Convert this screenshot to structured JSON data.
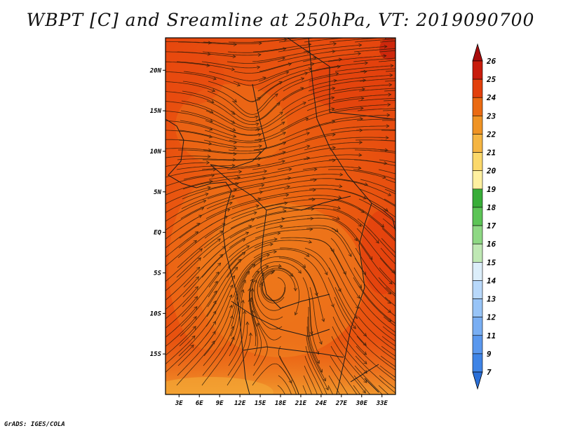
{
  "chart_data": {
    "type": "heatmap",
    "title": "WBPT [C] and Sreamline at 250hPa, VT: 2019090700",
    "x_ticks": [
      "3E",
      "6E",
      "9E",
      "12E",
      "15E",
      "18E",
      "21E",
      "24E",
      "27E",
      "30E",
      "33E"
    ],
    "y_ticks": [
      "20N",
      "15N",
      "10N",
      "5N",
      "EQ",
      "5S",
      "10S",
      "15S"
    ],
    "x_range": [
      "1E",
      "35E"
    ],
    "y_range": [
      "20S",
      "24N"
    ],
    "field_range_c": [
      22,
      24
    ],
    "colorbar": {
      "levels": [
        7,
        9,
        11,
        12,
        13,
        14,
        15,
        16,
        17,
        18,
        19,
        20,
        21,
        22,
        23,
        24,
        25,
        26
      ],
      "colors": [
        "#2a6fd8",
        "#3f84e6",
        "#5a98ee",
        "#79aef3",
        "#98c4f7",
        "#b8d8fa",
        "#dceefa",
        "#bfe8b4",
        "#8ed884",
        "#5cc456",
        "#38ad38",
        "#fff0a0",
        "#fbd86a",
        "#f5b542",
        "#ef9324",
        "#ea6a12",
        "#e2400c",
        "#c81c0c",
        "#a80c0c"
      ]
    }
  },
  "footer": "GrADS: IGES/COLA"
}
